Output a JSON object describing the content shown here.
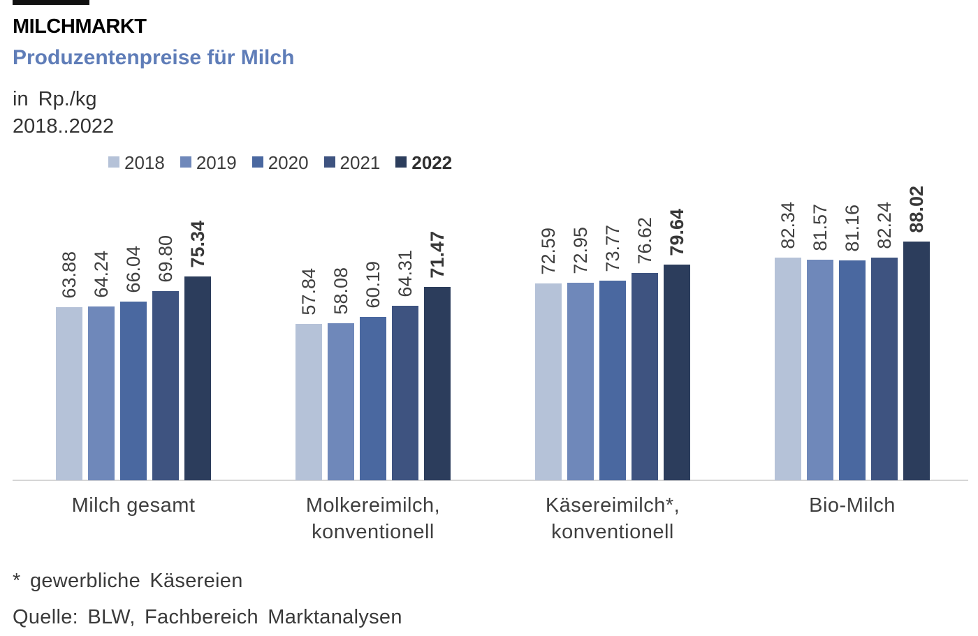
{
  "header": {
    "kicker": "MILCHMARKT",
    "title": "Produzentenpreise für Milch",
    "unit": "in Rp./kg",
    "period": "2018..2022"
  },
  "chart_data": {
    "type": "bar",
    "title": "Produzentenpreise für Milch",
    "ylabel": "in Rp./kg",
    "ylim": [
      0,
      100
    ],
    "grid": false,
    "legend_position": "top",
    "value_labels": "rotated-90-above-bars, 2 decimals",
    "categories": [
      "Milch gesamt",
      "Molkereimilch,\nkonventionell",
      "Käsereimilch*,\nkonventionell",
      "Bio-Milch"
    ],
    "series": [
      {
        "name": "2018",
        "color": "#b5c2d8",
        "bold": false,
        "values": [
          63.88,
          57.84,
          72.59,
          82.34
        ]
      },
      {
        "name": "2019",
        "color": "#6f88ba",
        "bold": false,
        "values": [
          64.24,
          58.08,
          72.95,
          81.57
        ]
      },
      {
        "name": "2020",
        "color": "#4a68a0",
        "bold": false,
        "values": [
          66.04,
          60.19,
          73.77,
          81.16
        ]
      },
      {
        "name": "2021",
        "color": "#3e5380",
        "bold": false,
        "values": [
          69.8,
          64.31,
          76.62,
          82.24
        ]
      },
      {
        "name": "2022",
        "color": "#2c3d5c",
        "bold": true,
        "values": [
          75.34,
          71.47,
          79.64,
          88.02
        ]
      }
    ],
    "colors": {
      "subtitle_accent": "#5f7db8",
      "axis_line": "#d6d6d6",
      "label_text": "#404040"
    }
  },
  "footer": {
    "footnote": "* gewerbliche Käsereien",
    "source": "Quelle: BLW, Fachbereich Marktanalysen"
  }
}
